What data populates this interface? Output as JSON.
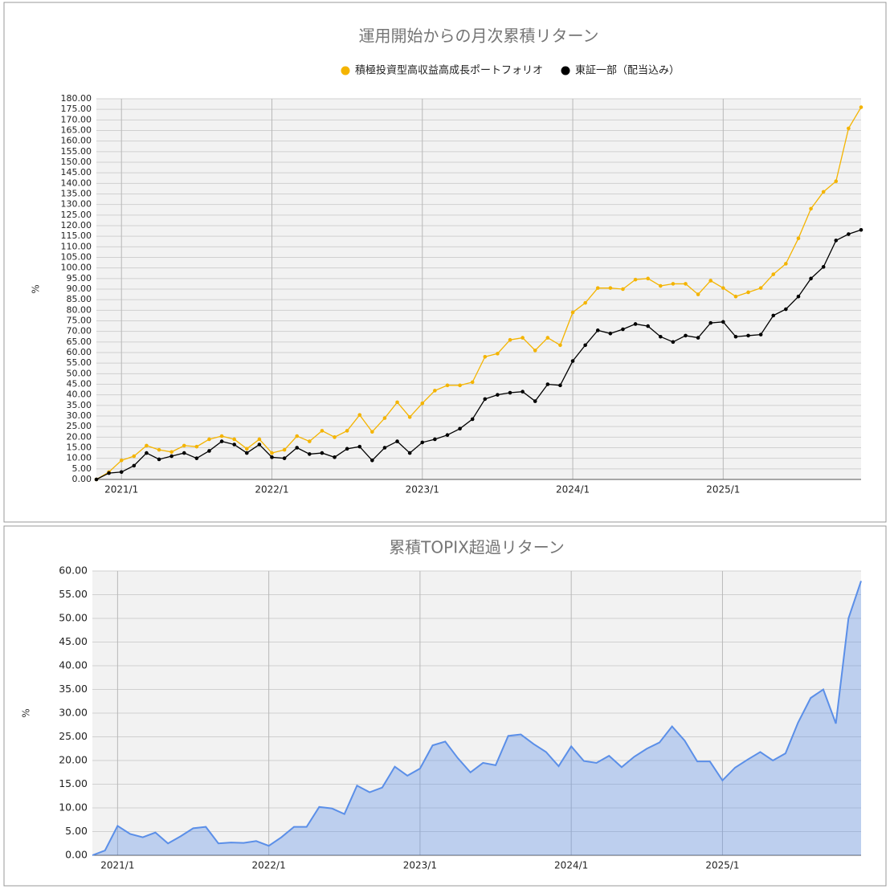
{
  "chart_data": [
    {
      "type": "line",
      "title": "運用開始からの月次累積リターン",
      "ylabel": "%",
      "categories": [
        null,
        null,
        "2021/1",
        null,
        null,
        null,
        null,
        null,
        null,
        null,
        null,
        null,
        null,
        null,
        "2022/1",
        null,
        null,
        null,
        null,
        null,
        null,
        null,
        null,
        null,
        null,
        null,
        "2023/1",
        null,
        null,
        null,
        null,
        null,
        null,
        null,
        null,
        null,
        null,
        null,
        "2024/1",
        null,
        null,
        null,
        null,
        null,
        null,
        null,
        null,
        null,
        null,
        null,
        "2025/1",
        null,
        null,
        null,
        null,
        null,
        null,
        null,
        null,
        null,
        null,
        null
      ],
      "series": [
        {
          "name": "積極投資型高収益高成長ポートフォリオ",
          "color": "#f4b400",
          "values": [
            0,
            3.5,
            9,
            11,
            16,
            14,
            13,
            16,
            15.5,
            19,
            20.5,
            19,
            14.5,
            19,
            12.5,
            14,
            20.5,
            18,
            23,
            20,
            23,
            30.5,
            22.5,
            29,
            36.5,
            29.5,
            36,
            42,
            44.5,
            44.5,
            46,
            58,
            59.5,
            66,
            67,
            61,
            67,
            63.5,
            79,
            83.5,
            90.5,
            90.5,
            90,
            94.5,
            95,
            91.5,
            92.5,
            92.5,
            87.5,
            94,
            90.5,
            86.5,
            88.5,
            90.5,
            97,
            102,
            114,
            128,
            136,
            141,
            166,
            176
          ]
        },
        {
          "name": "東証一部（配当込み）",
          "color": "#000000",
          "values": [
            0,
            3,
            3.5,
            6.5,
            12.5,
            9.5,
            11,
            12.5,
            10,
            13.5,
            18,
            16.5,
            12.5,
            16.5,
            10.5,
            10,
            15,
            12,
            12.5,
            10.5,
            14.5,
            15.5,
            9,
            15,
            18,
            12.5,
            17.5,
            19,
            21,
            24,
            28.5,
            38,
            40,
            41,
            41.5,
            37,
            45,
            44.5,
            56,
            63.5,
            70.5,
            69,
            71,
            73.5,
            72.5,
            67.5,
            65,
            68,
            67,
            74,
            74.5,
            67.5,
            68,
            68.5,
            77.5,
            80.5,
            86.5,
            95,
            100.5,
            113,
            116,
            118
          ]
        }
      ],
      "ylim": [
        0,
        180
      ],
      "yticks": [
        {
          "value": 0,
          "label": "0.00"
        },
        {
          "value": 5,
          "label": "5.00"
        },
        {
          "value": 10,
          "label": "10.00"
        },
        {
          "value": 15,
          "label": "15.00"
        },
        {
          "value": 20,
          "label": "20.00"
        },
        {
          "value": 25,
          "label": "25.00"
        },
        {
          "value": 30,
          "label": "30.00"
        },
        {
          "value": 35,
          "label": "35.00"
        },
        {
          "value": 40,
          "label": "40.00"
        },
        {
          "value": 45,
          "label": "45.00"
        },
        {
          "value": 50,
          "label": "50.00"
        },
        {
          "value": 55,
          "label": "55.00"
        },
        {
          "value": 60,
          "label": "60.00"
        },
        {
          "value": 65,
          "label": "65.00"
        },
        {
          "value": 70,
          "label": "70.00"
        },
        {
          "value": 75,
          "label": "75.00"
        },
        {
          "value": 80,
          "label": "80.00"
        },
        {
          "value": 85,
          "label": "85.00"
        },
        {
          "value": 90,
          "label": "90.00"
        },
        {
          "value": 95,
          "label": "95.00"
        },
        {
          "value": 100,
          "label": "100.00"
        },
        {
          "value": 105,
          "label": "105.00"
        },
        {
          "value": 110,
          "label": "110.00"
        },
        {
          "value": 115,
          "label": "115.00"
        },
        {
          "value": 120,
          "label": "120.00"
        },
        {
          "value": 125,
          "label": "125.00"
        },
        {
          "value": 130,
          "label": "130.00"
        },
        {
          "value": 135,
          "label": "135.00"
        },
        {
          "value": 140,
          "label": "140.00"
        },
        {
          "value": 145,
          "label": "145.00"
        },
        {
          "value": 150,
          "label": "150.00"
        },
        {
          "value": 155,
          "label": "155.00"
        },
        {
          "value": 160,
          "label": "160.00"
        },
        {
          "value": 165,
          "label": "165.00"
        },
        {
          "value": 170,
          "label": "170.00"
        },
        {
          "value": 175,
          "label": "175.00"
        },
        {
          "value": 180,
          "label": "180.00"
        }
      ],
      "grid": true,
      "legend": "top"
    },
    {
      "type": "area",
      "title": "累積TOPIX超過リターン",
      "ylabel": "%",
      "color": "#5b8fe8",
      "categories": [
        null,
        null,
        "2021/1",
        null,
        null,
        null,
        null,
        null,
        null,
        null,
        null,
        null,
        null,
        null,
        "2022/1",
        null,
        null,
        null,
        null,
        null,
        null,
        null,
        null,
        null,
        null,
        null,
        "2023/1",
        null,
        null,
        null,
        null,
        null,
        null,
        null,
        null,
        null,
        null,
        null,
        "2024/1",
        null,
        null,
        null,
        null,
        null,
        null,
        null,
        null,
        null,
        null,
        null,
        "2025/1",
        null,
        null,
        null,
        null,
        null,
        null,
        null,
        null,
        null,
        null,
        null
      ],
      "values": [
        0,
        1,
        6.2,
        4.5,
        3.8,
        4.8,
        2.5,
        4,
        5.7,
        6,
        2.5,
        2.7,
        2.6,
        3,
        2,
        3.8,
        6,
        6,
        10.2,
        9.9,
        8.7,
        14.7,
        13.3,
        14.3,
        18.7,
        16.8,
        18.3,
        23.2,
        24,
        20.5,
        17.5,
        19.5,
        19,
        25.2,
        25.5,
        23.5,
        21.8,
        18.8,
        23,
        19.9,
        19.5,
        21,
        18.6,
        20.8,
        22.5,
        23.8,
        27.2,
        24.2,
        19.8,
        19.8,
        15.8,
        18.5,
        20.2,
        21.8,
        20,
        21.5,
        28,
        33.2,
        35,
        27.8,
        50,
        57.9
      ],
      "ylim": [
        0,
        60
      ],
      "yticks": [
        {
          "value": 0,
          "label": "0.00"
        },
        {
          "value": 5,
          "label": "5.00"
        },
        {
          "value": 10,
          "label": "10.00"
        },
        {
          "value": 15,
          "label": "15.00"
        },
        {
          "value": 20,
          "label": "20.00"
        },
        {
          "value": 25,
          "label": "25.00"
        },
        {
          "value": 30,
          "label": "30.00"
        },
        {
          "value": 35,
          "label": "35.00"
        },
        {
          "value": 40,
          "label": "40.00"
        },
        {
          "value": 45,
          "label": "45.00"
        },
        {
          "value": 50,
          "label": "50.00"
        },
        {
          "value": 55,
          "label": "55.00"
        },
        {
          "value": 60,
          "label": "60.00"
        }
      ],
      "grid": true
    }
  ]
}
